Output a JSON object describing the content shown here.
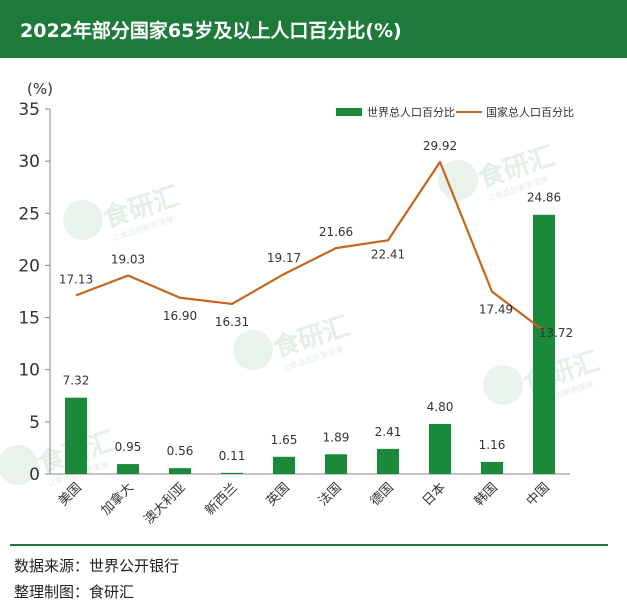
{
  "title": "2022年部分国家65岁及以上人口百分比(%)",
  "colors": {
    "title_bg": "#1e7a3a",
    "bar": "#1a8a3a",
    "line": "#c8641e",
    "axis": "#888888",
    "text": "#333333",
    "watermark": "#d7eadc"
  },
  "watermark": {
    "text": "食研汇",
    "slogan": "让食品创新更简单"
  },
  "chart_data": {
    "type": "bar",
    "unit_label": "(%)",
    "categories": [
      "美国",
      "加拿大",
      "澳大利亚",
      "新西兰",
      "英国",
      "法国",
      "德国",
      "日本",
      "韩国",
      "中国"
    ],
    "series": [
      {
        "name": "世界总人口百分比",
        "type": "bar",
        "values": [
          7.32,
          0.95,
          0.56,
          0.11,
          1.65,
          1.89,
          2.41,
          4.8,
          1.16,
          24.86
        ],
        "labels": [
          "7.32",
          "0.95",
          "0.56",
          "0.11",
          "1.65",
          "1.89",
          "2.41",
          "4.80",
          "1.16",
          "24.86"
        ]
      },
      {
        "name": "国家总人口百分比",
        "type": "line",
        "values": [
          17.13,
          19.03,
          16.9,
          16.31,
          19.17,
          21.66,
          22.41,
          29.92,
          17.49,
          13.72
        ],
        "labels": [
          "17.13",
          "19.03",
          "16.90",
          "16.31",
          "19.17",
          "21.66",
          "22.41",
          "29.92",
          "17.49",
          "13.72"
        ]
      }
    ],
    "ylim": [
      0,
      35
    ],
    "yticks": [
      "0",
      "5",
      "10",
      "15",
      "20",
      "25",
      "30",
      "35"
    ],
    "grid": false,
    "legend": "top-right"
  },
  "footer": {
    "source": "数据来源：世界公开银行",
    "author": "整理制图：食研汇"
  }
}
